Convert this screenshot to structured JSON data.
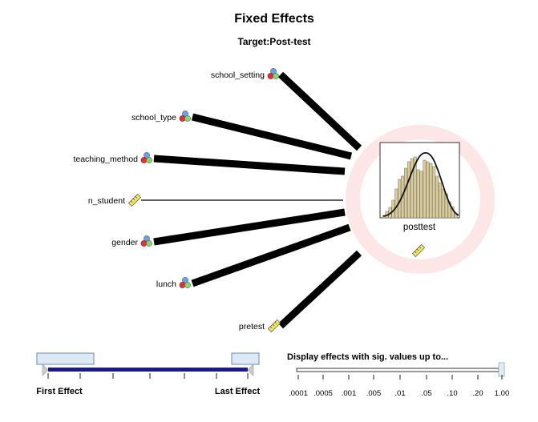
{
  "header": {
    "title": "Fixed Effects",
    "subtitle": "Target:Post-test"
  },
  "predictors": [
    {
      "label": "school_setting",
      "icon": "nominal-icon",
      "thickness": "thick"
    },
    {
      "label": "school_type",
      "icon": "nominal-icon",
      "thickness": "thick"
    },
    {
      "label": "teaching_method",
      "icon": "nominal-icon",
      "thickness": "thick"
    },
    {
      "label": "n_student",
      "icon": "ruler-icon",
      "thickness": "thin"
    },
    {
      "label": "gender",
      "icon": "nominal-icon",
      "thickness": "thick"
    },
    {
      "label": "lunch",
      "icon": "nominal-icon",
      "thickness": "thick"
    },
    {
      "label": "pretest",
      "icon": "ruler-icon",
      "thickness": "thick"
    }
  ],
  "target": {
    "label": "posttest",
    "icon": "ruler-icon",
    "histogram_bar_color": "#d8cca0",
    "ring_color": "#fde6e6"
  },
  "effect_slider": {
    "first_label": "First Effect",
    "last_label": "Last Effect",
    "track_color": "#1a1a8c"
  },
  "sig_slider": {
    "title": "Display effects with sig. values up to...",
    "ticks": [
      ".0001",
      ".0005",
      ".001",
      ".005",
      ".01",
      ".05",
      ".10",
      ".20",
      "1.00"
    ],
    "selected": "1.00"
  }
}
